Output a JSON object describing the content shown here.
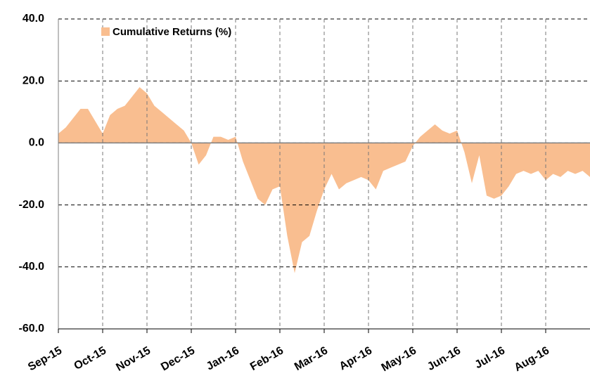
{
  "chart_data": {
    "type": "area",
    "categories": [
      "Sep-15",
      null,
      null,
      null,
      null,
      null,
      "Oct-15",
      null,
      null,
      null,
      null,
      null,
      "Nov-15",
      null,
      null,
      null,
      null,
      null,
      "Dec-15",
      null,
      null,
      null,
      null,
      null,
      "Jan-16",
      null,
      null,
      null,
      null,
      null,
      "Feb-16",
      null,
      null,
      null,
      null,
      null,
      "Mar-16",
      null,
      null,
      null,
      null,
      null,
      "Apr-16",
      null,
      null,
      null,
      null,
      null,
      "May-16",
      null,
      null,
      null,
      null,
      null,
      "Jun-16",
      null,
      null,
      null,
      null,
      null,
      "Jul-16",
      null,
      null,
      null,
      null,
      null,
      "Aug-16",
      null,
      null,
      null,
      null,
      null,
      null
    ],
    "series": [
      {
        "name": "Cumulative Returns (%)",
        "color": "#f9be90",
        "values": [
          3,
          5,
          8,
          11,
          11,
          7,
          3,
          9,
          11,
          12,
          15,
          18,
          16,
          12,
          10,
          8,
          6,
          4,
          0,
          -7,
          -4,
          2,
          2,
          1,
          2,
          -6,
          -12,
          -18,
          -20,
          -15,
          -14,
          -30,
          -42,
          -32,
          -30,
          -22,
          -15,
          -10,
          -15,
          -13,
          -12,
          -11,
          -12,
          -15,
          -9,
          -8,
          -7,
          -6,
          -1,
          2,
          4,
          6,
          4,
          3,
          4,
          -3,
          -13,
          -4,
          -17,
          -18,
          -17,
          -14,
          -10,
          -9,
          -10,
          -9,
          -12,
          -10,
          -11,
          -9,
          -10,
          -9,
          -11
        ]
      }
    ],
    "ylim": [
      -60,
      40
    ],
    "yticks": [
      {
        "value": -60,
        "label": "-60.0"
      },
      {
        "value": -40,
        "label": "-40.0"
      },
      {
        "value": -20,
        "label": "-20.0"
      },
      {
        "value": 0,
        "label": "0.0"
      },
      {
        "value": 20,
        "label": "20.0"
      },
      {
        "value": 40,
        "label": "40.0"
      }
    ],
    "grid": true,
    "legend": "top-left"
  }
}
